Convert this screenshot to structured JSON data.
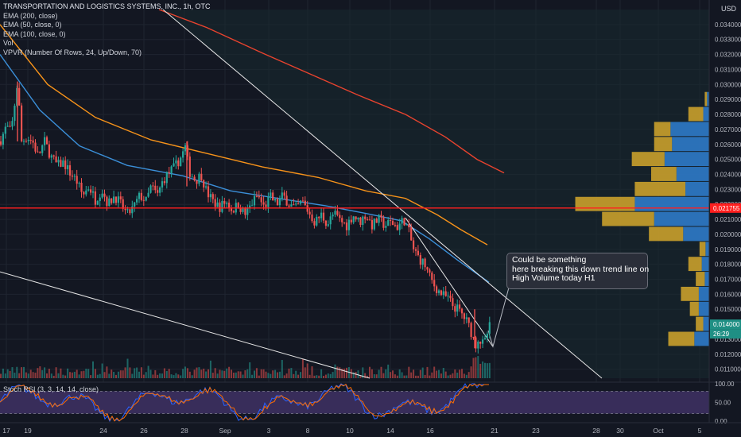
{
  "legend": {
    "title": "TRANSPORTATION AND LOGISTICS SYSTEMS, INC., 1h, OTC",
    "lines": [
      "EMA (200, close)",
      "EMA (50, close, 0)",
      "EMA (100, close, 0)",
      "Vol",
      "VPVR (Number Of Rows, 24, Up/Down, 70)"
    ]
  },
  "rsi_label": "Stoch RSI (3, 3, 14, 14, close)",
  "currency": "USD",
  "annotation": {
    "lines": [
      "Could be something",
      "here breaking this down trend line on",
      "High Volume today H1"
    ]
  },
  "colors": {
    "background": "#131722",
    "up": "#26a69a",
    "down": "#ef5350",
    "ema200": "#e8432e",
    "ema100": "#f7931a",
    "ema50": "#3b8fd8",
    "vpvr_up": "#2f7fd1",
    "vpvr_down": "#d4a72c",
    "rsi_k": "#2962ff",
    "rsi_d": "#ff6d00"
  },
  "chart_data": {
    "type": "candlestick",
    "y_axis_ticks": [
      "0.034000",
      "0.033000",
      "0.032000",
      "0.031000",
      "0.030000",
      "0.029000",
      "0.028000",
      "0.027000",
      "0.026000",
      "0.025000",
      "0.024000",
      "0.023000",
      "0.022000",
      "0.021000",
      "0.020000",
      "0.019000",
      "0.018000",
      "0.017000",
      "0.016000",
      "0.015000",
      "0.014000",
      "0.013000",
      "0.012000",
      "0.011000"
    ],
    "x_axis_ticks": [
      "17",
      "19",
      "24",
      "26",
      "28",
      "Sep",
      "3",
      "8",
      "10",
      "14",
      "16",
      "21",
      "23",
      "28",
      "30",
      "Oct",
      "5"
    ],
    "ylim": [
      0.0104,
      0.035
    ],
    "price_labels": {
      "horizontal_line": "0.021755",
      "last_price": "0.014000",
      "countdown": "26:29"
    },
    "horizontal_line": 0.021755,
    "last_price": 0.014,
    "price_path": [
      [
        0,
        0.0262
      ],
      [
        8,
        0.0272
      ],
      [
        14,
        0.0268
      ],
      [
        22,
        0.0302
      ],
      [
        27,
        0.0262
      ],
      [
        34,
        0.0265
      ],
      [
        41,
        0.0262
      ],
      [
        48,
        0.0252
      ],
      [
        56,
        0.0262
      ],
      [
        64,
        0.0252
      ],
      [
        72,
        0.0246
      ],
      [
        80,
        0.0248
      ],
      [
        88,
        0.0241
      ],
      [
        96,
        0.0236
      ],
      [
        104,
        0.0226
      ],
      [
        112,
        0.0232
      ],
      [
        120,
        0.0223
      ],
      [
        128,
        0.023
      ],
      [
        136,
        0.022
      ],
      [
        144,
        0.0226
      ],
      [
        152,
        0.022
      ],
      [
        160,
        0.0213
      ],
      [
        168,
        0.0218
      ],
      [
        176,
        0.0226
      ],
      [
        184,
        0.0222
      ],
      [
        190,
        0.0232
      ],
      [
        198,
        0.0226
      ],
      [
        205,
        0.0236
      ],
      [
        212,
        0.0241
      ],
      [
        220,
        0.0245
      ],
      [
        228,
        0.0252
      ],
      [
        233,
        0.0258
      ],
      [
        238,
        0.0242
      ],
      [
        246,
        0.0236
      ],
      [
        253,
        0.024
      ],
      [
        260,
        0.0228
      ],
      [
        268,
        0.0222
      ],
      [
        276,
        0.0218
      ],
      [
        284,
        0.0222
      ],
      [
        292,
        0.0216
      ],
      [
        300,
        0.022
      ],
      [
        308,
        0.0213
      ],
      [
        316,
        0.022
      ],
      [
        324,
        0.0226
      ],
      [
        332,
        0.0218
      ],
      [
        340,
        0.0225
      ],
      [
        348,
        0.022
      ],
      [
        356,
        0.0226
      ],
      [
        364,
        0.022
      ],
      [
        372,
        0.0217
      ],
      [
        380,
        0.0222
      ],
      [
        388,
        0.0215
      ],
      [
        396,
        0.0208
      ],
      [
        404,
        0.0213
      ],
      [
        412,
        0.0207
      ],
      [
        420,
        0.0214
      ],
      [
        428,
        0.0209
      ],
      [
        436,
        0.0206
      ],
      [
        444,
        0.0213
      ],
      [
        452,
        0.0208
      ],
      [
        460,
        0.0213
      ],
      [
        468,
        0.0206
      ],
      [
        476,
        0.021
      ],
      [
        484,
        0.0206
      ],
      [
        492,
        0.0208
      ],
      [
        500,
        0.0205
      ],
      [
        508,
        0.021
      ],
      [
        514,
        0.0202
      ],
      [
        520,
        0.019
      ],
      [
        527,
        0.0184
      ],
      [
        534,
        0.018
      ],
      [
        540,
        0.0172
      ],
      [
        546,
        0.0166
      ],
      [
        552,
        0.0162
      ],
      [
        558,
        0.0159
      ],
      [
        564,
        0.0157
      ],
      [
        570,
        0.0152
      ],
      [
        576,
        0.015
      ],
      [
        582,
        0.0146
      ],
      [
        588,
        0.0141
      ],
      [
        594,
        0.0133
      ],
      [
        598,
        0.0126
      ],
      [
        601,
        0.0131
      ],
      [
        605,
        0.0128
      ],
      [
        609,
        0.0126
      ],
      [
        613,
        0.0134
      ],
      [
        617,
        0.014
      ]
    ],
    "ema200": [
      [
        200,
        0.035
      ],
      [
        260,
        0.0338
      ],
      [
        330,
        0.0321
      ],
      [
        390,
        0.0307
      ],
      [
        450,
        0.0293
      ],
      [
        510,
        0.028
      ],
      [
        560,
        0.0265
      ],
      [
        600,
        0.025
      ],
      [
        634,
        0.0241
      ]
    ],
    "ema100": [
      [
        0,
        0.034
      ],
      [
        60,
        0.03
      ],
      [
        120,
        0.0278
      ],
      [
        190,
        0.0263
      ],
      [
        260,
        0.0254
      ],
      [
        330,
        0.0245
      ],
      [
        400,
        0.0238
      ],
      [
        460,
        0.0229
      ],
      [
        510,
        0.0224
      ],
      [
        550,
        0.0213
      ],
      [
        580,
        0.0203
      ],
      [
        613,
        0.0193
      ]
    ],
    "ema50": [
      [
        0,
        0.032
      ],
      [
        50,
        0.0283
      ],
      [
        100,
        0.0259
      ],
      [
        160,
        0.0246
      ],
      [
        230,
        0.0239
      ],
      [
        290,
        0.0229
      ],
      [
        350,
        0.0224
      ],
      [
        410,
        0.0219
      ],
      [
        460,
        0.0214
      ],
      [
        505,
        0.0209
      ],
      [
        540,
        0.0197
      ],
      [
        575,
        0.0183
      ],
      [
        615,
        0.0168
      ]
    ],
    "trend_lines": [
      [
        [
          205,
          0.035
        ],
        [
          757,
          0.0104
        ]
      ],
      [
        [
          0,
          0.0175
        ],
        [
          465,
          0.0104
        ]
      ],
      [
        [
          510,
          0.0211
        ],
        [
          620,
          0.0125
        ]
      ]
    ],
    "volume_profile": [
      {
        "price": 0.013,
        "up": 20,
        "down": 35
      },
      {
        "price": 0.014,
        "up": 8,
        "down": 10
      },
      {
        "price": 0.015,
        "up": 14,
        "down": 12
      },
      {
        "price": 0.016,
        "up": 14,
        "down": 24
      },
      {
        "price": 0.017,
        "up": 6,
        "down": 12
      },
      {
        "price": 0.018,
        "up": 10,
        "down": 18
      },
      {
        "price": 0.019,
        "up": 5,
        "down": 8
      },
      {
        "price": 0.02,
        "up": 35,
        "down": 46
      },
      {
        "price": 0.021,
        "up": 74,
        "down": 70
      },
      {
        "price": 0.022,
        "up": 100,
        "down": 80
      },
      {
        "price": 0.023,
        "up": 32,
        "down": 68
      },
      {
        "price": 0.024,
        "up": 44,
        "down": 34
      },
      {
        "price": 0.025,
        "up": 60,
        "down": 44
      },
      {
        "price": 0.026,
        "up": 50,
        "down": 24
      },
      {
        "price": 0.027,
        "up": 52,
        "down": 22
      },
      {
        "price": 0.028,
        "up": 8,
        "down": 20
      },
      {
        "price": 0.029,
        "up": 3,
        "down": 3
      }
    ],
    "stoch_rsi": {
      "ylim": [
        0,
        100
      ],
      "ticks": [
        "100.00",
        "50.00",
        "0.00"
      ],
      "bands": [
        80,
        20
      ]
    }
  }
}
